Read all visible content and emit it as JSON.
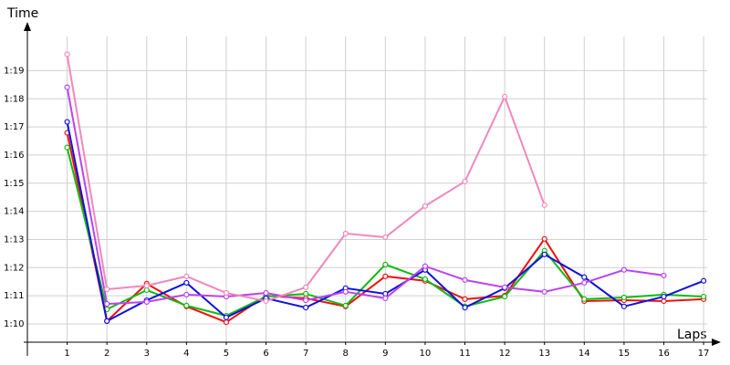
{
  "chart_data": {
    "type": "line",
    "y_label": "Time",
    "x_label": "Laps",
    "x": [
      1,
      2,
      3,
      4,
      5,
      6,
      7,
      8,
      9,
      10,
      11,
      12,
      13,
      14,
      15,
      16,
      17
    ],
    "xlim": [
      0,
      17.65
    ],
    "xticks": [
      1,
      2,
      3,
      4,
      5,
      6,
      7,
      8,
      9,
      10,
      11,
      12,
      13,
      14,
      15,
      16,
      17
    ],
    "ylim": [
      69.35,
      80.7
    ],
    "yticks": [
      {
        "value": 70,
        "label": "1:10"
      },
      {
        "value": 71,
        "label": "1:11"
      },
      {
        "value": 72,
        "label": "1:12"
      },
      {
        "value": 73,
        "label": "1:13"
      },
      {
        "value": 74,
        "label": "1:14"
      },
      {
        "value": 75,
        "label": "1:15"
      },
      {
        "value": 76,
        "label": "1:16"
      },
      {
        "value": 77,
        "label": "1:17"
      },
      {
        "value": 78,
        "label": "1:18"
      },
      {
        "value": 79,
        "label": "1:19"
      }
    ],
    "grid": true,
    "series": [
      {
        "color": "#ee1111",
        "values": [
          76.79,
          70.1,
          71.43,
          70.62,
          70.06,
          71.0,
          70.91,
          70.62,
          71.69,
          71.53,
          70.88,
          71.0,
          73.02,
          70.81,
          70.84,
          70.81,
          70.88
        ]
      },
      {
        "color": "#11bb11",
        "values": [
          76.27,
          70.52,
          71.2,
          70.65,
          70.29,
          70.97,
          71.07,
          70.65,
          72.11,
          71.59,
          70.62,
          70.97,
          72.6,
          70.88,
          70.94,
          71.04,
          70.97
        ]
      },
      {
        "color": "#1111dd",
        "values": [
          77.18,
          70.1,
          70.84,
          71.46,
          70.23,
          70.91,
          70.58,
          71.27,
          71.07,
          71.92,
          70.58,
          71.27,
          72.47,
          71.66,
          70.62,
          70.97,
          71.53
        ]
      },
      {
        "color": "#bb44ee",
        "values": [
          78.41,
          70.71,
          70.78,
          71.04,
          70.97,
          71.1,
          70.84,
          71.14,
          70.91,
          72.05,
          71.56,
          71.3,
          71.14,
          71.46,
          71.92,
          71.72,
          null
        ]
      },
      {
        "color": "#f088bb",
        "values": [
          79.58,
          71.23,
          71.36,
          71.69,
          71.1,
          70.81,
          71.3,
          73.21,
          73.08,
          74.19,
          75.06,
          78.08,
          74.22,
          null,
          null,
          null,
          null
        ]
      }
    ]
  }
}
